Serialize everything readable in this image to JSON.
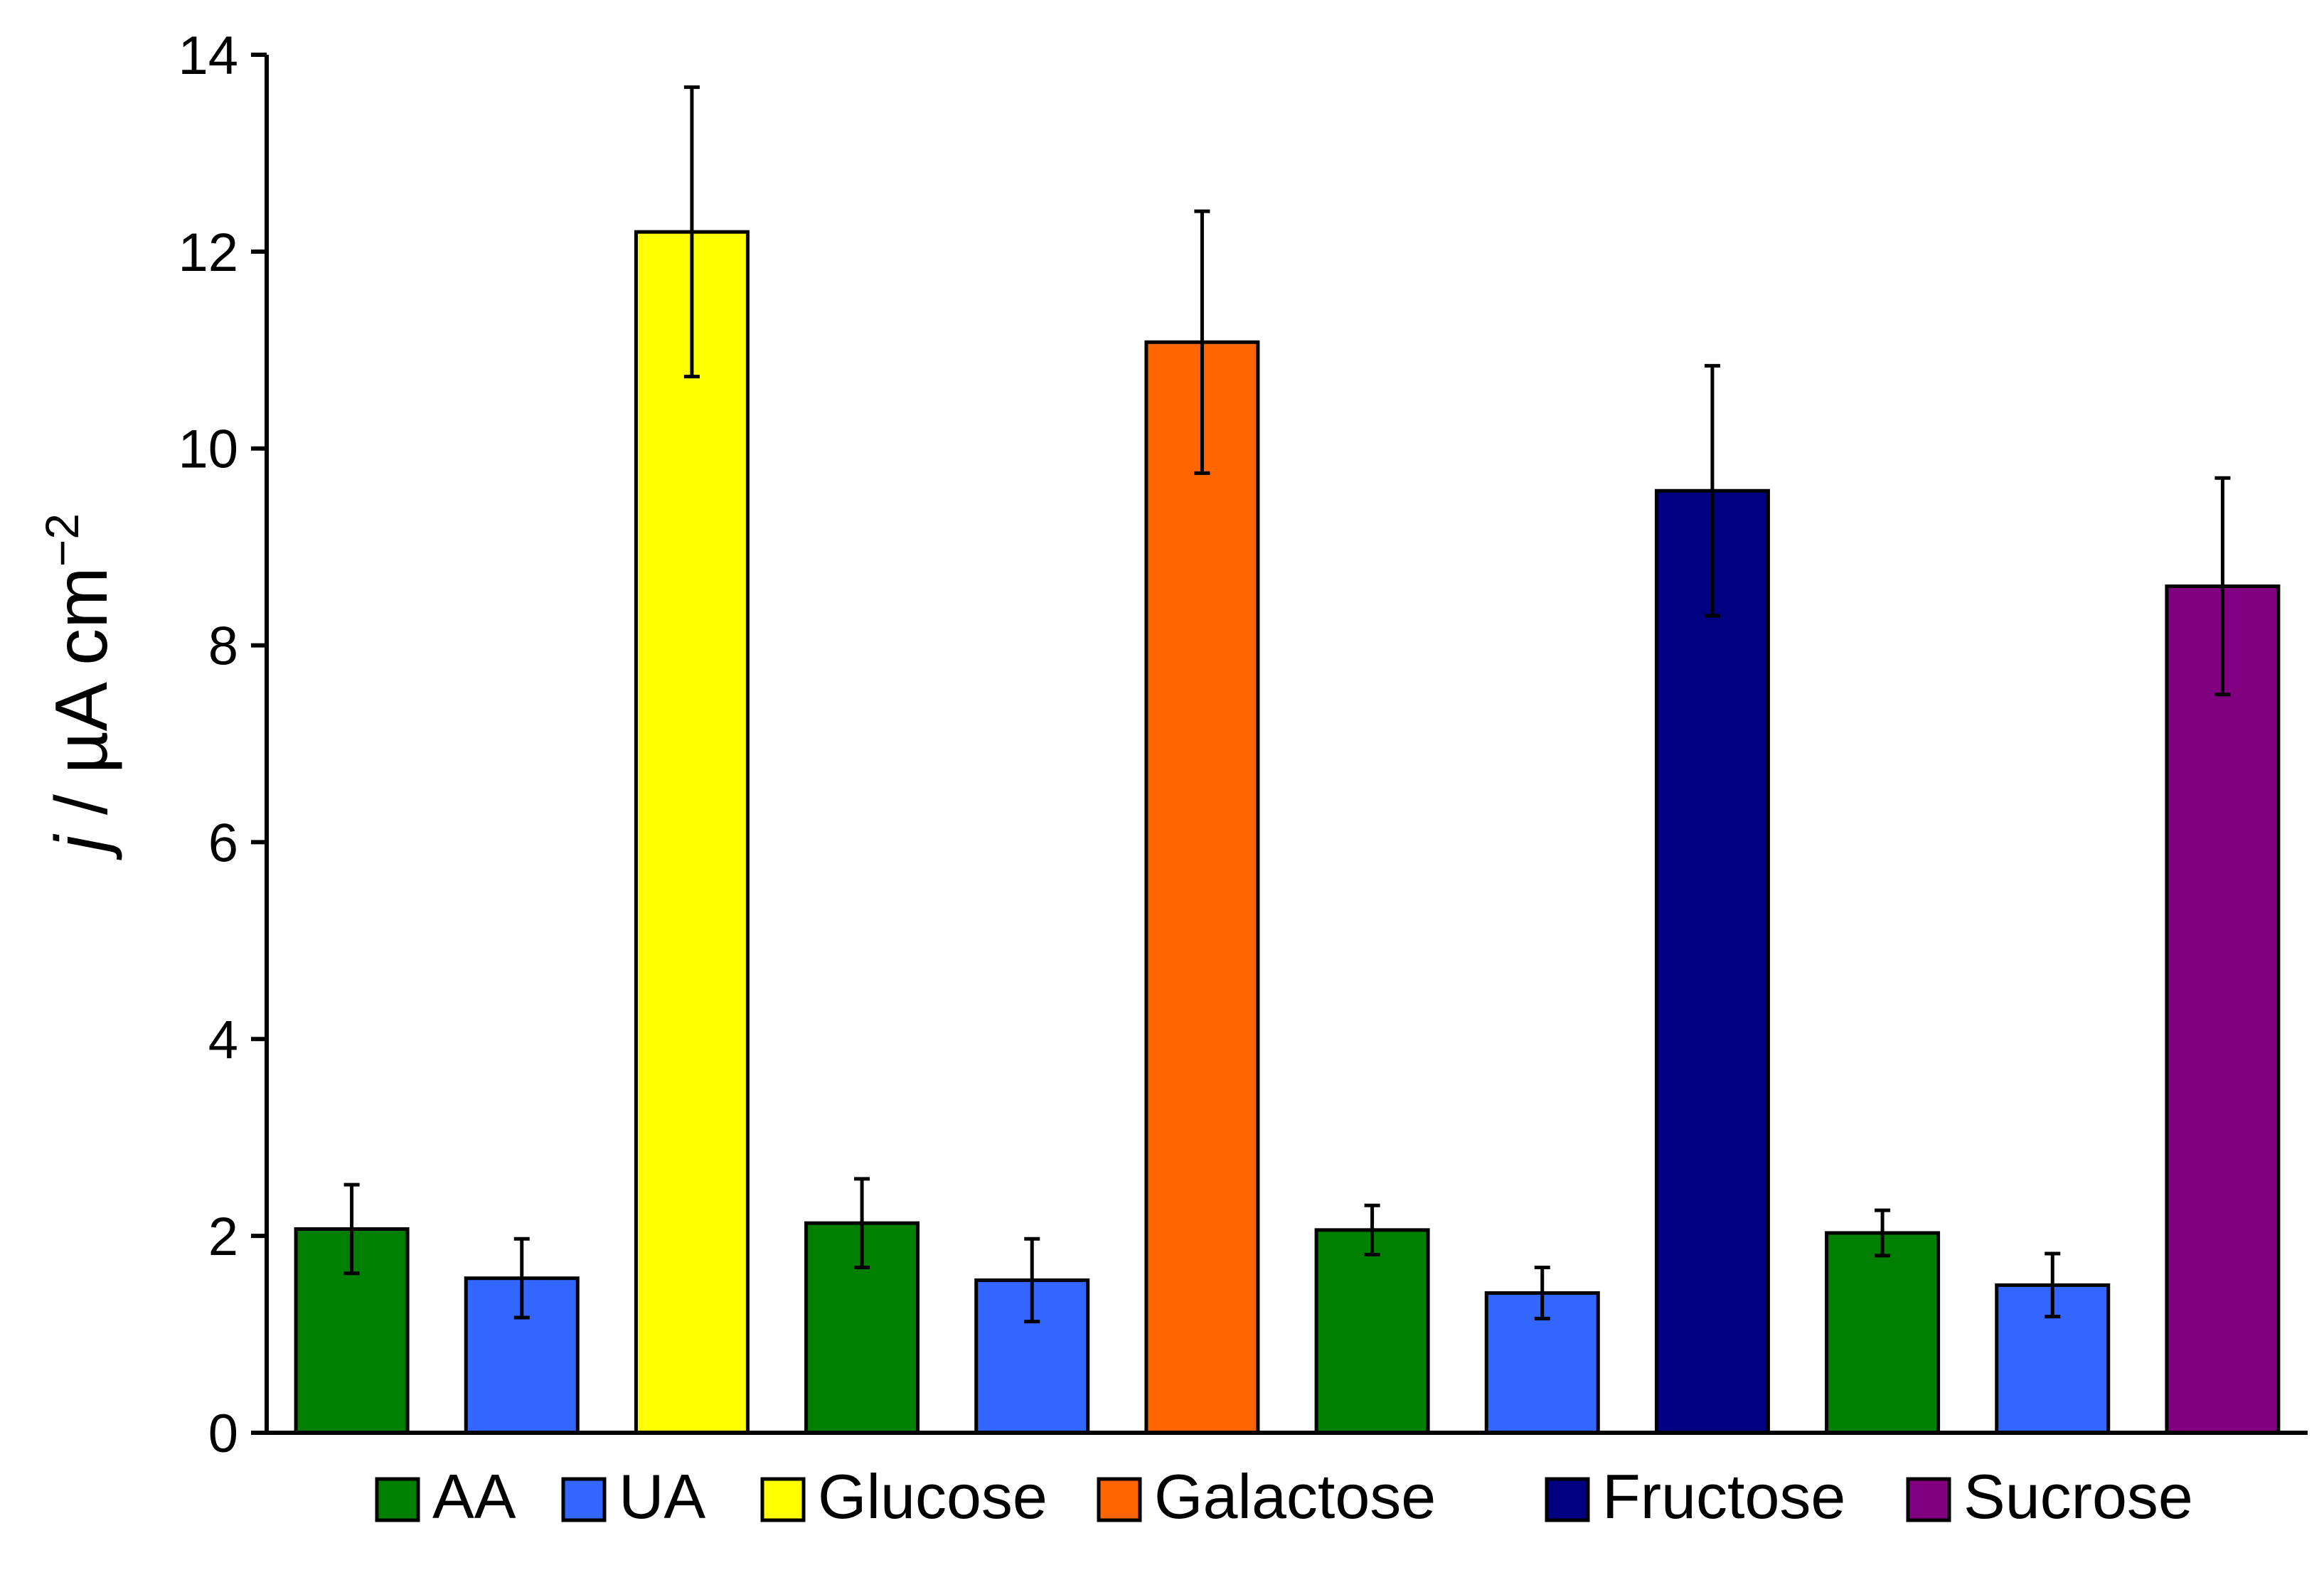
{
  "chart_data": {
    "type": "bar",
    "categories": [
      "AA",
      "UA",
      "Glucose",
      "AA",
      "UA",
      "Galactose",
      "AA",
      "UA",
      "Fructose",
      "AA",
      "UA",
      "Sucrose"
    ],
    "series_per_bar": [
      "AA",
      "UA",
      "Glucose",
      "AA",
      "UA",
      "Galactose",
      "AA",
      "UA",
      "Fructose",
      "AA",
      "UA",
      "Sucrose"
    ],
    "values": [
      2.07,
      1.57,
      12.2,
      2.13,
      1.55,
      11.08,
      2.06,
      1.42,
      9.57,
      2.03,
      1.5,
      8.6
    ],
    "errors": [
      0.45,
      0.4,
      1.47,
      0.45,
      0.42,
      1.33,
      0.25,
      0.26,
      1.27,
      0.23,
      0.32,
      1.1
    ],
    "colors": [
      "#007f00",
      "#3366ff",
      "#ffff00",
      "#007f00",
      "#3366ff",
      "#ff6600",
      "#007f00",
      "#3366ff",
      "#000080",
      "#007f00",
      "#3366ff",
      "#800080"
    ],
    "ylim": [
      0,
      14
    ],
    "yticks": [
      "0",
      "2",
      "4",
      "6",
      "8",
      "10",
      "12",
      "14"
    ],
    "ylabel": {
      "italic": "j",
      "text": " / µA cm",
      "superscript": "−2"
    },
    "xlabel": "",
    "title": "",
    "grid": false,
    "legend": {
      "position": "bottom",
      "entries": [
        {
          "label": "AA",
          "color": "#007f00"
        },
        {
          "label": "UA",
          "color": "#3366ff"
        },
        {
          "label": "Glucose",
          "color": "#ffff00"
        },
        {
          "label": "Galactose",
          "color": "#ff6600"
        },
        {
          "label": "Fructose",
          "color": "#000080"
        },
        {
          "label": "Sucrose",
          "color": "#800080"
        }
      ]
    }
  }
}
